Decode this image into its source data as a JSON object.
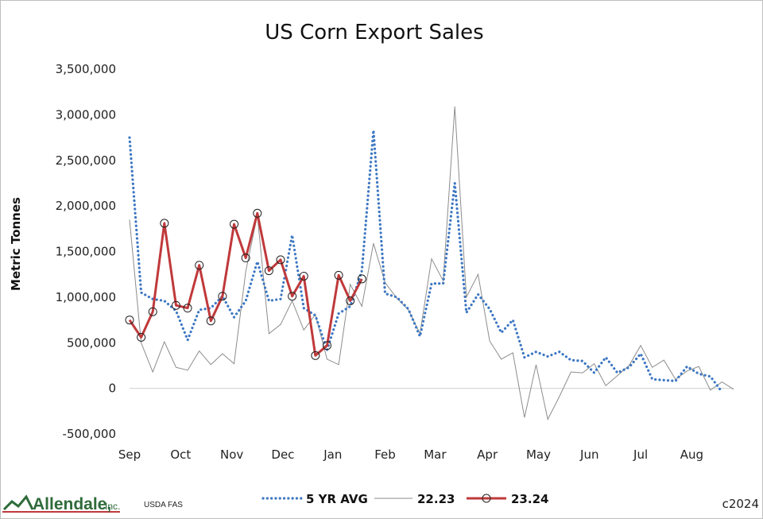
{
  "chart_data": {
    "type": "line",
    "title": "US Corn Export Sales",
    "ylabel": "Metric Tonnes",
    "xlabel": "",
    "ylim": [
      -500000,
      3500000
    ],
    "yticks": [
      3500000,
      3000000,
      2500000,
      2000000,
      1500000,
      1000000,
      500000,
      0,
      -500000
    ],
    "ytick_labels": [
      "3,500,000",
      "3,000,000",
      "2,500,000",
      "2,000,000",
      "1,500,000",
      "1,000,000",
      "500,000",
      "0",
      "-500,000"
    ],
    "xlim": [
      0,
      52
    ],
    "month_labels": [
      "Sep",
      "Oct",
      "Nov",
      "Dec",
      "Jan",
      "Feb",
      "Mar",
      "Apr",
      "May",
      "Jun",
      "Jul",
      "Aug"
    ],
    "month_positions": [
      0,
      4.4,
      8.8,
      13.2,
      17.5,
      22,
      26.3,
      30.8,
      35.2,
      39.6,
      44,
      48.4
    ],
    "grid": false,
    "legend_position": "bottom",
    "series": [
      {
        "name": "5 YR AVG",
        "style": "dotted",
        "color": "#3d77c2",
        "x": [
          0,
          1,
          2,
          3,
          4,
          5,
          6,
          7,
          8,
          9,
          10,
          11,
          12,
          13,
          14,
          15,
          16,
          17,
          18,
          19,
          20,
          21,
          22,
          23,
          24,
          25,
          26,
          27,
          28,
          29,
          30,
          31,
          32,
          33,
          34,
          35,
          36,
          37,
          38,
          39,
          40,
          41,
          42,
          43,
          44,
          45,
          46,
          47,
          48,
          49,
          50,
          51
        ],
        "values": [
          2750000,
          1050000,
          980000,
          960000,
          850000,
          530000,
          860000,
          880000,
          1010000,
          780000,
          960000,
          1390000,
          960000,
          980000,
          1680000,
          880000,
          800000,
          420000,
          820000,
          900000,
          1290000,
          2830000,
          1040000,
          1000000,
          870000,
          570000,
          1150000,
          1150000,
          2250000,
          830000,
          1030000,
          870000,
          610000,
          750000,
          340000,
          400000,
          350000,
          400000,
          310000,
          300000,
          170000,
          340000,
          170000,
          230000,
          380000,
          100000,
          90000,
          80000,
          240000,
          160000,
          130000,
          -40000
        ]
      },
      {
        "name": "22.23",
        "style": "solid",
        "color": "#8c8c8c",
        "x": [
          0,
          1,
          2,
          3,
          4,
          5,
          6,
          7,
          8,
          9,
          10,
          11,
          12,
          13,
          14,
          15,
          16,
          17,
          18,
          19,
          20,
          21,
          22,
          23,
          24,
          25,
          26,
          27,
          28,
          29,
          30,
          31,
          32,
          33,
          34,
          35,
          36,
          37,
          38,
          39,
          40,
          41,
          42,
          43,
          44,
          45,
          46,
          47,
          48,
          49,
          50,
          51,
          52
        ],
        "values": [
          1850000,
          500000,
          180000,
          510000,
          230000,
          200000,
          410000,
          260000,
          380000,
          270000,
          1280000,
          1900000,
          600000,
          700000,
          960000,
          640000,
          810000,
          320000,
          260000,
          1140000,
          900000,
          1590000,
          1160000,
          990000,
          860000,
          600000,
          1420000,
          1180000,
          3090000,
          1000000,
          1250000,
          520000,
          320000,
          390000,
          -320000,
          260000,
          -340000,
          -90000,
          180000,
          170000,
          270000,
          30000,
          140000,
          250000,
          470000,
          230000,
          310000,
          100000,
          190000,
          240000,
          -20000,
          70000,
          -10000
        ]
      },
      {
        "name": "23.24",
        "style": "solid-marker",
        "color": "#c0393b",
        "x": [
          0,
          1,
          2,
          3,
          4,
          5,
          6,
          7,
          8,
          9,
          10,
          11,
          12,
          13,
          14,
          15,
          16,
          17,
          18,
          19,
          20
        ],
        "values": [
          750000,
          560000,
          840000,
          1810000,
          910000,
          880000,
          1350000,
          740000,
          1010000,
          1800000,
          1430000,
          1920000,
          1290000,
          1410000,
          1010000,
          1230000,
          360000,
          470000,
          1240000,
          960000,
          1200000
        ]
      }
    ]
  },
  "footer": {
    "source": "USDA FAS",
    "code": "c2024",
    "logo_text": "Allendale,",
    "logo_inc": "Inc."
  }
}
